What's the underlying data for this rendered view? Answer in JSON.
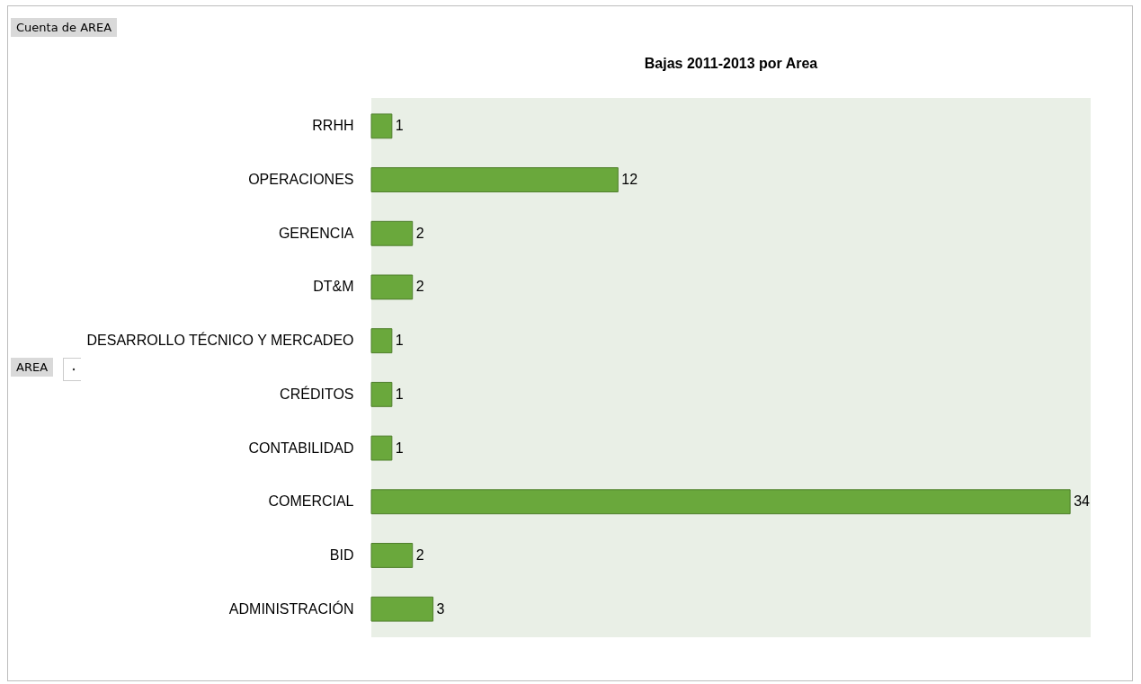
{
  "chart_data": {
    "type": "bar",
    "orientation": "horizontal",
    "title": "Bajas 2011-2013 por Area",
    "categories": [
      "RRHH",
      "OPERACIONES",
      "GERENCIA",
      "DT&M",
      "DESARROLLO TÉCNICO Y MERCADEO",
      "CRÉDITOS",
      "CONTABILIDAD",
      "COMERCIAL",
      "BID",
      "ADMINISTRACIÓN"
    ],
    "values": [
      1,
      12,
      2,
      2,
      1,
      1,
      1,
      34,
      2,
      3
    ],
    "color": "#6aa83c",
    "data_labels": true,
    "tick_labels": "y",
    "annotations": [
      "Cuenta de AREA",
      "AREA"
    ]
  }
}
